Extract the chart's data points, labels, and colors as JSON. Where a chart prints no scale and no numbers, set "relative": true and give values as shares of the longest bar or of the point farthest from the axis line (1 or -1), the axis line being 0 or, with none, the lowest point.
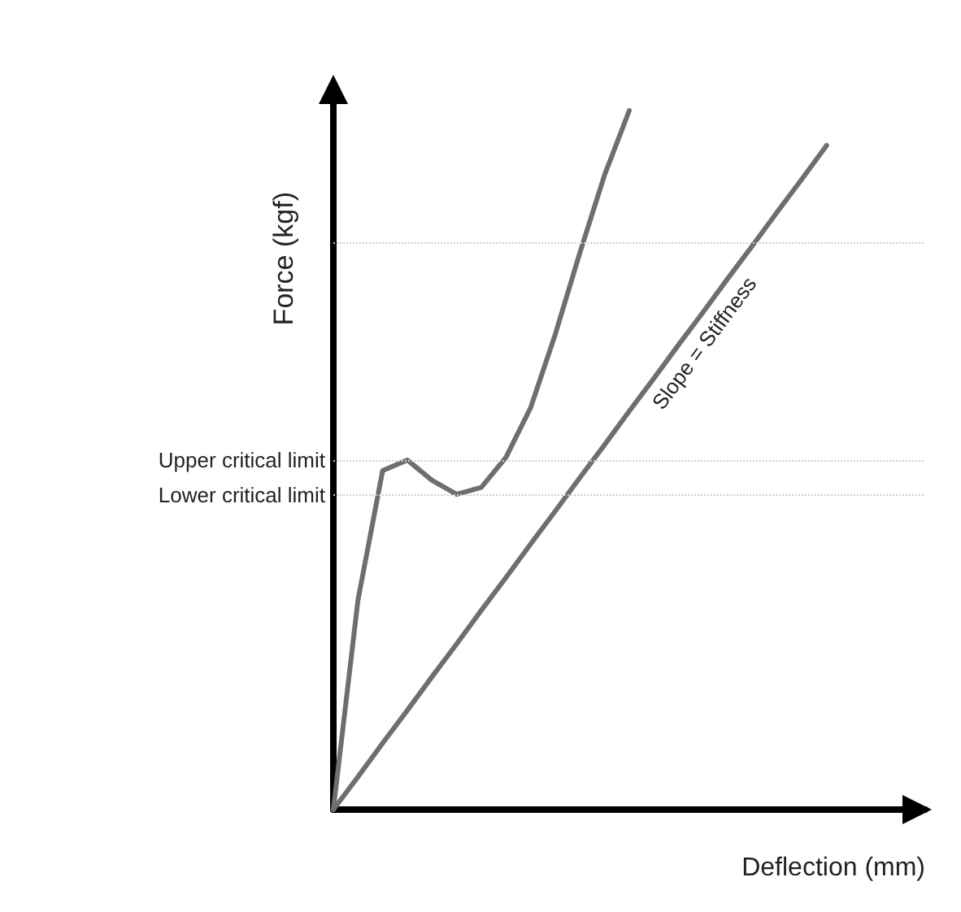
{
  "chart_data": {
    "type": "line",
    "relative": true,
    "xlabel": "Deflection (mm)",
    "ylabel": "Force (kgf)",
    "grid": false,
    "marker": "none",
    "line_style": "solid",
    "categories": [
      null,
      null,
      null,
      null,
      null,
      null,
      null,
      null,
      null,
      null,
      null,
      null,
      null,
      null,
      null,
      null,
      null,
      null,
      null,
      null,
      null,
      null,
      null,
      null,
      null
    ],
    "series": [
      {
        "color": "#6e6e6e",
        "values": [
          0,
          0.3,
          0.485,
          0.5,
          0.471,
          0.451,
          0.461,
          0.504,
          0.575,
          0.68,
          0.797,
          0.908,
          1.0,
          null,
          null,
          null,
          null,
          null,
          null,
          null,
          null,
          null,
          null,
          null,
          null
        ]
      },
      {
        "color": "#6e6e6e",
        "values": [
          0,
          0.047,
          0.095,
          0.142,
          0.19,
          0.237,
          0.285,
          0.332,
          0.38,
          0.427,
          0.475,
          0.522,
          0.57,
          0.617,
          0.665,
          0.712,
          0.76,
          0.807,
          0.855,
          0.902,
          0.95,
          null,
          null,
          null,
          null
        ]
      }
    ],
    "ref_lines": [
      {
        "axis": "y",
        "value": 0.5,
        "label": "Upper critical limit",
        "color": "#cccccc",
        "line_style": "dotted"
      },
      {
        "axis": "y",
        "value": 0.451,
        "label": "Lower critical limit",
        "color": "#cccccc",
        "line_style": "dotted"
      },
      {
        "axis": "y",
        "value": 0.807,
        "label": null,
        "color": "#cccccc",
        "line_style": "dotted"
      }
    ],
    "annotations": [
      "Slope = Stiffness"
    ]
  }
}
